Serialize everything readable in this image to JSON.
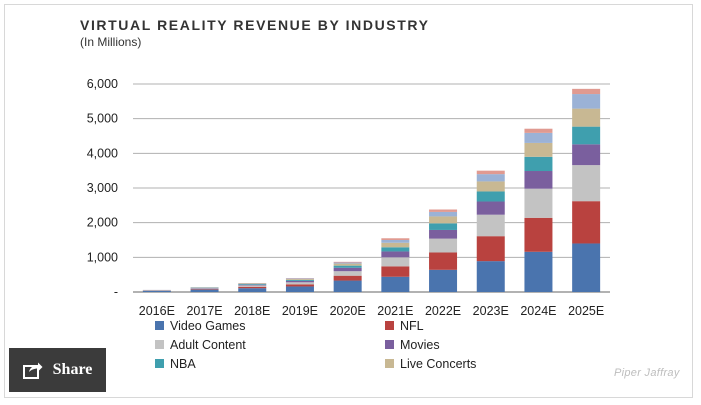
{
  "chart_data": {
    "type": "bar",
    "stacked": true,
    "title": "VIRTUAL REALITY REVENUE BY INDUSTRY",
    "subtitle": "(In Millions)",
    "ylim": [
      0,
      6000
    ],
    "yticks": [
      0,
      1000,
      2000,
      3000,
      4000,
      5000,
      6000
    ],
    "ytick_labels": [
      "-",
      "1,000",
      "2,000",
      "3,000",
      "4,000",
      "5,000",
      "6,000"
    ],
    "grid": true,
    "legend_position": "bottom",
    "categories": [
      "2016E",
      "2017E",
      "2018E",
      "2019E",
      "2020E",
      "2021E",
      "2022E",
      "2023E",
      "2024E",
      "2025E"
    ],
    "series": [
      {
        "name": "Video Games",
        "color": "#4a74ae",
        "values": [
          35,
          70,
          110,
          160,
          330,
          440,
          640,
          890,
          1160,
          1400
        ]
      },
      {
        "name": "NFL",
        "color": "#b9423f",
        "values": [
          5,
          15,
          40,
          60,
          140,
          300,
          500,
          720,
          980,
          1220
        ]
      },
      {
        "name": "Adult Content",
        "color": "#c3c3c3",
        "values": [
          8,
          20,
          40,
          60,
          130,
          260,
          400,
          620,
          840,
          1040
        ]
      },
      {
        "name": "Movies",
        "color": "#7a5f9e",
        "values": [
          4,
          10,
          20,
          40,
          100,
          170,
          250,
          380,
          510,
          600
        ]
      },
      {
        "name": "NBA",
        "color": "#3f9fae",
        "values": [
          3,
          10,
          20,
          30,
          60,
          120,
          190,
          290,
          410,
          510
        ]
      },
      {
        "name": "Live Concerts",
        "color": "#c8b893",
        "values": [
          3,
          8,
          15,
          25,
          60,
          130,
          200,
          290,
          400,
          520
        ]
      },
      {
        "name": "",
        "color": "#9bb2d6",
        "values": [
          2,
          5,
          10,
          15,
          30,
          80,
          130,
          210,
          290,
          420
        ]
      },
      {
        "name": "",
        "color": "#e09a91",
        "values": [
          1,
          2,
          5,
          10,
          20,
          50,
          70,
          100,
          120,
          150
        ]
      }
    ]
  },
  "source": "Piper Jaffray",
  "share": {
    "label": "Share"
  }
}
